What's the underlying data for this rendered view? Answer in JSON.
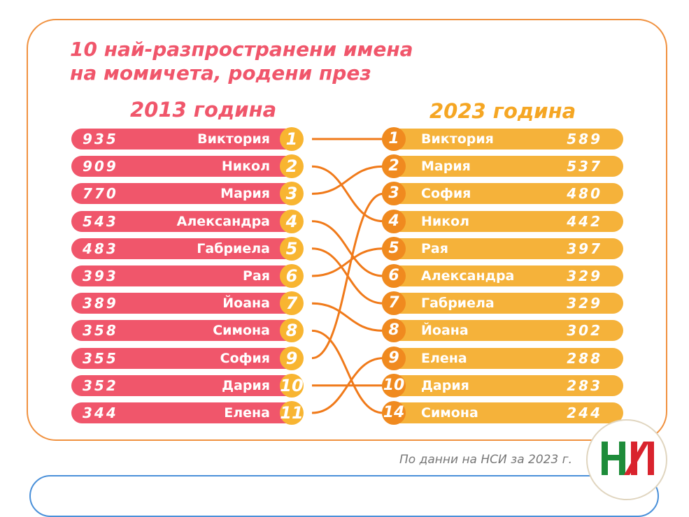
{
  "title": {
    "line1": "10 най-разпространени имена",
    "line2": "на момичета, родени през"
  },
  "chart_data": {
    "type": "table",
    "left": {
      "label": "2013 година",
      "rows": [
        {
          "rank": "1",
          "name": "Виктория",
          "value": 935
        },
        {
          "rank": "2",
          "name": "Никол",
          "value": 909
        },
        {
          "rank": "3",
          "name": "Мария",
          "value": 770
        },
        {
          "rank": "4",
          "name": "Александра",
          "value": 543
        },
        {
          "rank": "5",
          "name": "Габриела",
          "value": 483
        },
        {
          "rank": "6",
          "name": "Рая",
          "value": 393
        },
        {
          "rank": "7",
          "name": "Йоана",
          "value": 389
        },
        {
          "rank": "8",
          "name": "Симона",
          "value": 358
        },
        {
          "rank": "9",
          "name": "София",
          "value": 355
        },
        {
          "rank": "10",
          "name": "Дария",
          "value": 352
        },
        {
          "rank": "11",
          "name": "Елена",
          "value": 344
        }
      ]
    },
    "right": {
      "label": "2023 година",
      "rows": [
        {
          "rank": "1",
          "name": "Виктория",
          "value": 589
        },
        {
          "rank": "2",
          "name": "Мария",
          "value": 537
        },
        {
          "rank": "3",
          "name": "София",
          "value": 480
        },
        {
          "rank": "4",
          "name": "Никол",
          "value": 442
        },
        {
          "rank": "5",
          "name": "Рая",
          "value": 397
        },
        {
          "rank": "6",
          "name": "Александра",
          "value": 329
        },
        {
          "rank": "7",
          "name": "Габриела",
          "value": 329
        },
        {
          "rank": "8",
          "name": "Йоана",
          "value": 302
        },
        {
          "rank": "9",
          "name": "Елена",
          "value": 288
        },
        {
          "rank": "10",
          "name": "Дария",
          "value": 283
        },
        {
          "rank": "14",
          "name": "Симона",
          "value": 244
        }
      ]
    }
  },
  "source": "По данни на НСИ за 2023 г.",
  "colors": {
    "left": "#f0566b",
    "right": "#f5b23a",
    "link": "#f07a1a",
    "logo_green": "#1e8c3a",
    "logo_red": "#d9232d"
  }
}
